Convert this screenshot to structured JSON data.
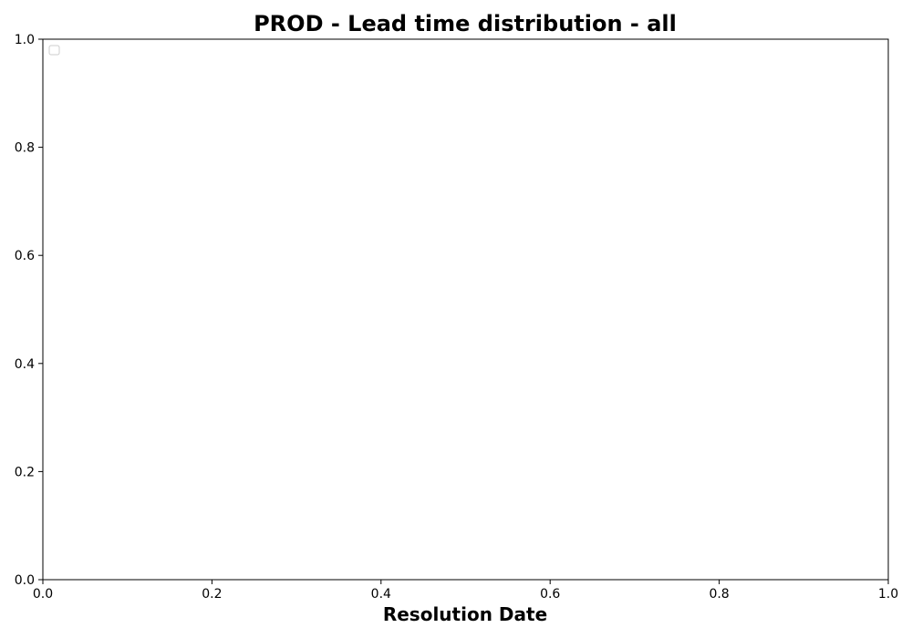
{
  "chart_data": {
    "type": "line",
    "title": "PROD - Lead time distribution - all",
    "xlabel": "Resolution Date",
    "ylabel": "",
    "xlim": [
      0.0,
      1.0
    ],
    "ylim": [
      0.0,
      1.0
    ],
    "x_ticks": [
      "0.0",
      "0.2",
      "0.4",
      "0.6",
      "0.8",
      "1.0"
    ],
    "y_ticks": [
      "0.0",
      "0.2",
      "0.4",
      "0.6",
      "0.8",
      "1.0"
    ],
    "series": [],
    "grid": false,
    "legend": {
      "placement": "upper-left",
      "entries": []
    },
    "colors": {
      "axes": "#000000",
      "background": "#ffffff",
      "legend_border": "#cccccc"
    }
  }
}
